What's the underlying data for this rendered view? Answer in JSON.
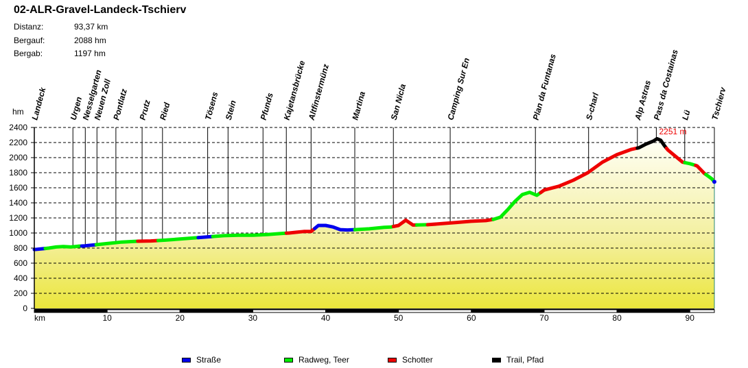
{
  "header": {
    "title": "02-ALR-Gravel-Landeck-Tschierv",
    "stats": [
      {
        "label": "Distanz:",
        "value": "93,37 km"
      },
      {
        "label": "Bergauf:",
        "value": "2088 hm"
      },
      {
        "label": "Bergab:",
        "value": "1197 hm"
      }
    ]
  },
  "chart_data": {
    "type": "area",
    "title": "02-ALR-Gravel-Landeck-Tschierv",
    "xlabel": "km",
    "ylabel": "hm",
    "xlim": [
      0,
      93.37
    ],
    "ylim": [
      0,
      2400
    ],
    "xticks": [
      10,
      20,
      30,
      40,
      50,
      60,
      70,
      80,
      90
    ],
    "yticks": [
      0,
      200,
      400,
      600,
      800,
      1000,
      1200,
      1400,
      1600,
      1800,
      2000,
      2200,
      2400
    ],
    "grid": "horizontal dashed",
    "max_annotation": "2251 m",
    "waypoints": [
      {
        "name": "Landeck",
        "km": 0.0
      },
      {
        "name": "Urgen",
        "km": 5.3
      },
      {
        "name": "Nesselgarten",
        "km": 7.0
      },
      {
        "name": "Neuen Zoll",
        "km": 8.6
      },
      {
        "name": "Pontlatz",
        "km": 11.2
      },
      {
        "name": "Prutz",
        "km": 14.8
      },
      {
        "name": "Ried",
        "km": 17.6
      },
      {
        "name": "Tösens",
        "km": 23.8
      },
      {
        "name": "Stein",
        "km": 26.6
      },
      {
        "name": "Pfunds",
        "km": 31.4
      },
      {
        "name": "Kajetansbrücke",
        "km": 34.6
      },
      {
        "name": "Altfinstermünz",
        "km": 38.0
      },
      {
        "name": "Martina",
        "km": 44.0
      },
      {
        "name": "San Nicla",
        "km": 49.3
      },
      {
        "name": "Camping Sur En",
        "km": 57.1
      },
      {
        "name": "Plan da Funtanas",
        "km": 68.8
      },
      {
        "name": "S-charl",
        "km": 76.1
      },
      {
        "name": "Alp Astras",
        "km": 82.8
      },
      {
        "name": "Pass da Costainas",
        "km": 85.4
      },
      {
        "name": "Lü",
        "km": 89.3
      },
      {
        "name": "Tschierv",
        "km": 93.37
      }
    ],
    "series": [
      {
        "name": "Höhe",
        "x": [
          0,
          1,
          2,
          3,
          4,
          5,
          6,
          7,
          8,
          9,
          10,
          12,
          14,
          16,
          18,
          20,
          22,
          24,
          26,
          28,
          30,
          32,
          34,
          35,
          36,
          37,
          38,
          39,
          40,
          41,
          42,
          43,
          44,
          46,
          48,
          49,
          50,
          51,
          52,
          54,
          56,
          58,
          60,
          62,
          63,
          64,
          65,
          66,
          67,
          68,
          69,
          70,
          72,
          74,
          76,
          78,
          80,
          82,
          83,
          84,
          85,
          85.5,
          86,
          86.5,
          87,
          88,
          89,
          90,
          91,
          92,
          93,
          93.37
        ],
        "values": [
          780,
          790,
          800,
          815,
          820,
          815,
          825,
          830,
          840,
          850,
          860,
          880,
          890,
          895,
          905,
          920,
          935,
          950,
          965,
          970,
          970,
          980,
          995,
          1000,
          1010,
          1020,
          1020,
          1100,
          1100,
          1080,
          1045,
          1040,
          1045,
          1055,
          1075,
          1080,
          1100,
          1170,
          1105,
          1110,
          1125,
          1140,
          1155,
          1165,
          1180,
          1210,
          1310,
          1420,
          1510,
          1540,
          1500,
          1570,
          1620,
          1700,
          1800,
          1940,
          2040,
          2110,
          2130,
          2180,
          2220,
          2251,
          2230,
          2160,
          2100,
          2020,
          1940,
          1920,
          1890,
          1790,
          1720,
          1680
        ]
      },
      {
        "name": "legend",
        "categories": [
          "Straße",
          "Radweg, Teer",
          "Schotter",
          "Trail, Pfad"
        ],
        "colors": [
          "#0000ee",
          "#00ee00",
          "#ee0000",
          "#000000"
        ]
      }
    ],
    "surface_segments": [
      {
        "from_km": 0,
        "to_km": 1.5,
        "type": "Straße"
      },
      {
        "from_km": 1.5,
        "to_km": 6.5,
        "type": "Radweg, Teer"
      },
      {
        "from_km": 6.5,
        "to_km": 8.5,
        "type": "Straße"
      },
      {
        "from_km": 8.5,
        "to_km": 14.2,
        "type": "Radweg, Teer"
      },
      {
        "from_km": 14.2,
        "to_km": 17.0,
        "type": "Schotter"
      },
      {
        "from_km": 17.0,
        "to_km": 22.5,
        "type": "Radweg, Teer"
      },
      {
        "from_km": 22.5,
        "to_km": 24.5,
        "type": "Straße"
      },
      {
        "from_km": 24.5,
        "to_km": 34.6,
        "type": "Radweg, Teer"
      },
      {
        "from_km": 34.6,
        "to_km": 38.5,
        "type": "Schotter"
      },
      {
        "from_km": 38.5,
        "to_km": 44.0,
        "type": "Straße"
      },
      {
        "from_km": 44.0,
        "to_km": 49.3,
        "type": "Radweg, Teer"
      },
      {
        "from_km": 49.3,
        "to_km": 52.5,
        "type": "Schotter"
      },
      {
        "from_km": 52.5,
        "to_km": 54.0,
        "type": "Radweg, Teer"
      },
      {
        "from_km": 54.0,
        "to_km": 63.0,
        "type": "Schotter"
      },
      {
        "from_km": 63.0,
        "to_km": 69.5,
        "type": "Radweg, Teer"
      },
      {
        "from_km": 69.5,
        "to_km": 82.8,
        "type": "Schotter"
      },
      {
        "from_km": 82.8,
        "to_km": 86.8,
        "type": "Trail, Pfad"
      },
      {
        "from_km": 86.8,
        "to_km": 89.3,
        "type": "Schotter"
      },
      {
        "from_km": 89.3,
        "to_km": 90.8,
        "type": "Radweg, Teer"
      },
      {
        "from_km": 90.8,
        "to_km": 92.2,
        "type": "Schotter"
      },
      {
        "from_km": 92.2,
        "to_km": 93.37,
        "type": "Radweg, Teer"
      }
    ]
  },
  "axis": {
    "y_unit": "hm",
    "x_unit": "km"
  },
  "legend": [
    {
      "label": "Straße",
      "color": "#0000ee"
    },
    {
      "label": "Radweg, Teer",
      "color": "#00ee00"
    },
    {
      "label": "Schotter",
      "color": "#ee0000"
    },
    {
      "label": "Trail, Pfad",
      "color": "#000000"
    }
  ]
}
